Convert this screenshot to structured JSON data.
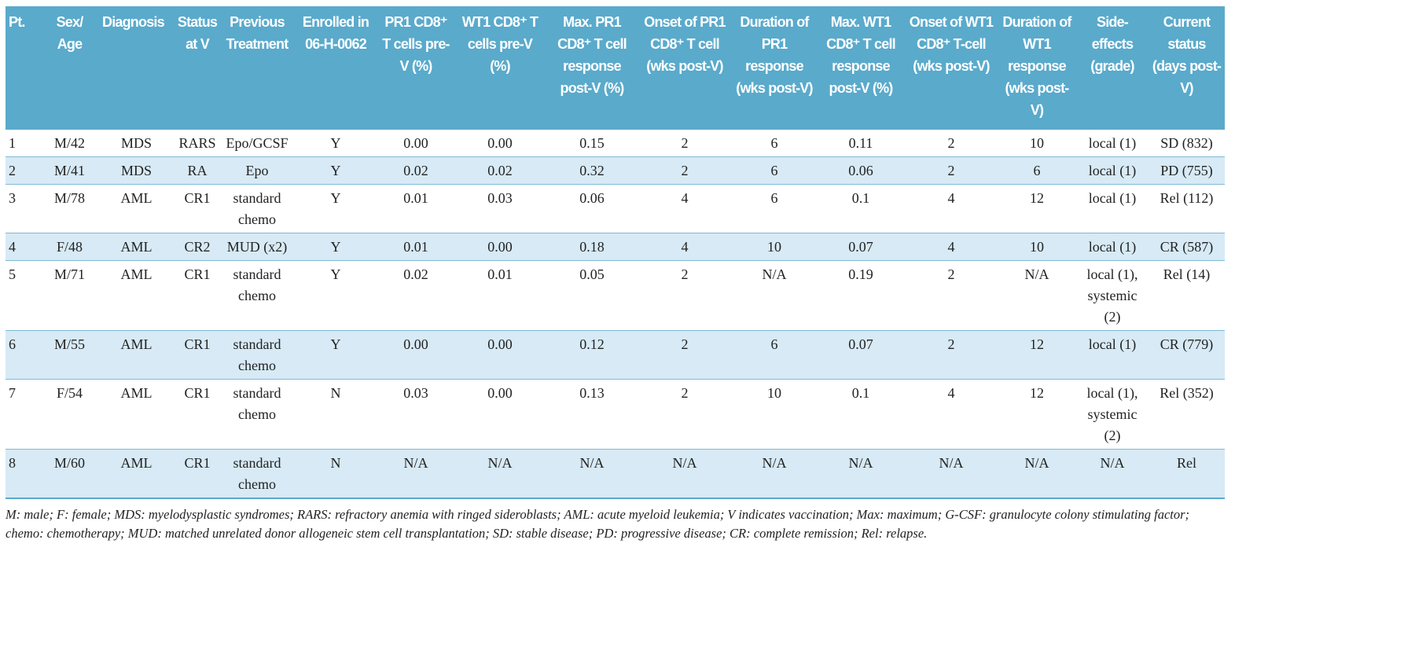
{
  "headers": [
    "Pt.",
    "Sex/ Age",
    "Diagnosis",
    "Status at V",
    "Previous Treatment",
    "Enrolled in 06-H-0062",
    "PR1 CD8⁺ T cells pre-V (%)",
    "WT1 CD8⁺ T cells pre-V (%)",
    "Max. PR1 CD8⁺ T cell response post-V (%)",
    "Onset of PR1 CD8⁺ T cell (wks post-V)",
    "Duration of PR1 response (wks post-V)",
    "Max. WT1 CD8⁺ T cell response post-V (%)",
    "Onset of WT1 CD8⁺ T-cell (wks post-V)",
    "Duration of WT1 response (wks post-V)",
    "Side-effects (grade)",
    "Current status (days post-V)"
  ],
  "rows": [
    [
      "1",
      "M/42",
      "MDS",
      "RARS",
      "Epo/GCSF",
      "Y",
      "0.00",
      "0.00",
      "0.15",
      "2",
      "6",
      "0.11",
      "2",
      "10",
      "local (1)",
      "SD (832)"
    ],
    [
      "2",
      "M/41",
      "MDS",
      "RA",
      "Epo",
      "Y",
      "0.02",
      "0.02",
      "0.32",
      "2",
      "6",
      "0.06",
      "2",
      "6",
      "local (1)",
      "PD (755)"
    ],
    [
      "3",
      "M/78",
      "AML",
      "CR1",
      "standard chemo",
      "Y",
      "0.01",
      "0.03",
      "0.06",
      "4",
      "6",
      "0.1",
      "4",
      "12",
      "local (1)",
      "Rel (112)"
    ],
    [
      "4",
      "F/48",
      "AML",
      "CR2",
      "MUD (x2)",
      "Y",
      "0.01",
      "0.00",
      "0.18",
      "4",
      "10",
      "0.07",
      "4",
      "10",
      "local (1)",
      "CR (587)"
    ],
    [
      "5",
      "M/71",
      "AML",
      "CR1",
      "standard chemo",
      "Y",
      "0.02",
      "0.01",
      "0.05",
      "2",
      "N/A",
      "0.19",
      "2",
      "N/A",
      "local (1), systemic (2)",
      "Rel (14)"
    ],
    [
      "6",
      "M/55",
      "AML",
      "CR1",
      "standard chemo",
      "Y",
      "0.00",
      "0.00",
      "0.12",
      "2",
      "6",
      "0.07",
      "2",
      "12",
      "local (1)",
      "CR (779)"
    ],
    [
      "7",
      "F/54",
      "AML",
      "CR1",
      "standard chemo",
      "N",
      "0.03",
      "0.00",
      "0.13",
      "2",
      "10",
      "0.1",
      "4",
      "12",
      "local (1), systemic (2)",
      "Rel (352)"
    ],
    [
      "8",
      "M/60",
      "AML",
      "CR1",
      "standard chemo",
      "N",
      "N/A",
      "N/A",
      "N/A",
      "N/A",
      "N/A",
      "N/A",
      "N/A",
      "N/A",
      "N/A",
      "Rel"
    ]
  ],
  "footnote": "M: male; F: female; MDS: myelodysplastic syndromes; RARS: refractory anemia with ringed sideroblasts; AML: acute myeloid leukemia; V indicates vaccination; Max: maximum; G-CSF: granulocyte colony stimulating factor; chemo: chemotherapy; MUD: matched unrelated donor allogeneic stem cell transplantation; SD: stable disease; PD: progressive disease; CR: complete remission; Rel: relapse.",
  "colors": {
    "header_bg": "#5aaacb",
    "stripe": "#d7eaf5"
  }
}
